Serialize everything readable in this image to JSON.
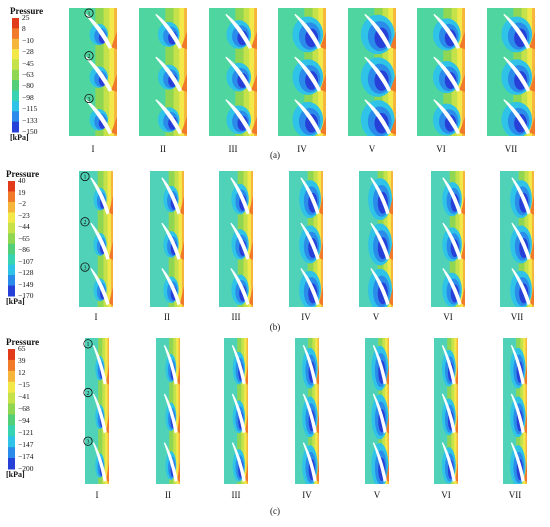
{
  "panels": [
    {
      "id": "a",
      "label": "(a)",
      "legend_title": "Pressure",
      "unit": "[kPa]",
      "ticks": [
        "25",
        "8",
        "−10",
        "−28",
        "−45",
        "−63",
        "−80",
        "−98",
        "−115",
        "−133",
        "−150"
      ],
      "cases": [
        "I",
        "II",
        "III",
        "IV",
        "V",
        "VI",
        "VII"
      ],
      "markers": [
        "1",
        "2",
        "3"
      ],
      "scale_colors": [
        "#e23b1c",
        "#f1792a",
        "#f6b53b",
        "#f2e84a",
        "#c6e24a",
        "#8fd653",
        "#52cf78",
        "#37d3b3",
        "#2ec3e7",
        "#2b8bea",
        "#2640d8"
      ]
    },
    {
      "id": "b",
      "label": "(b)",
      "legend_title": "Pressure",
      "unit": "[kPa]",
      "ticks": [
        "40",
        "19",
        "−2",
        "−23",
        "−44",
        "−65",
        "−86",
        "−107",
        "−128",
        "−149",
        "−170"
      ],
      "cases": [
        "I",
        "II",
        "III",
        "IV",
        "V",
        "VI",
        "VII"
      ],
      "markers": [
        "1",
        "2",
        "3"
      ],
      "scale_colors": [
        "#e23b1c",
        "#f1792a",
        "#f6b53b",
        "#f2e84a",
        "#c6e24a",
        "#8fd653",
        "#52cf78",
        "#37d3b3",
        "#2ec3e7",
        "#2b8bea",
        "#2640d8"
      ]
    },
    {
      "id": "c",
      "label": "(c)",
      "legend_title": "Pressure",
      "unit": "[kPa]",
      "ticks": [
        "65",
        "39",
        "12",
        "−15",
        "−41",
        "−68",
        "−94",
        "−121",
        "−147",
        "−174",
        "−200"
      ],
      "cases": [
        "I",
        "II",
        "III",
        "IV",
        "V",
        "VI",
        "VII"
      ],
      "markers": [
        "1",
        "2",
        "3"
      ],
      "scale_colors": [
        "#e23b1c",
        "#f1792a",
        "#f6b53b",
        "#f2e84a",
        "#c6e24a",
        "#8fd653",
        "#52cf78",
        "#37d3b3",
        "#2ec3e7",
        "#2b8bea",
        "#2640d8"
      ]
    }
  ]
}
